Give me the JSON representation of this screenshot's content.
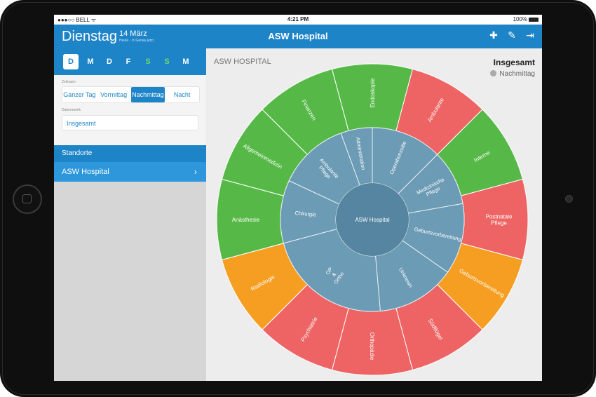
{
  "status": {
    "carrier": "●●●○○ BELL ᯤ",
    "time": "4:21 PM",
    "battery": "100%"
  },
  "header": {
    "day": "Dienstag",
    "date": "14 März",
    "date_sub": "Heute · ⟳ Genau jetzt",
    "title": "ASW Hospital"
  },
  "icons": {
    "one": "cross-hands-icon",
    "two": "edit-icon",
    "three": "logout-icon"
  },
  "sidebar": {
    "weekdays": [
      "D",
      "M",
      "D",
      "F",
      "S",
      "S",
      "M"
    ],
    "range_label": "Zeitraum",
    "range_options": [
      "Ganzer Tag",
      "Vormittag",
      "Nachmittag",
      "Nacht"
    ],
    "metric_label": "Datenmetrik",
    "metric_value": "Insgesamt",
    "locations_header": "Standorte",
    "location": "ASW Hospital"
  },
  "main": {
    "title": "ASW HOSPITAL",
    "summary": "Insgesamt",
    "period": "Nachmittag"
  },
  "colors": {
    "blue": "#1e84c8",
    "green": "#56b947",
    "red": "#ee6464",
    "orange": "#f59e22",
    "inner": "#6c9bb5",
    "center": "#5585a0"
  },
  "chart_data": {
    "type": "sunburst",
    "center": "ASW Hospital",
    "inner": [
      {
        "label": "Chirurgie"
      },
      {
        "label": "Ambulante Pflege"
      },
      {
        "label": "Administration"
      },
      {
        "label": "Operationssäle"
      },
      {
        "label": "Medizinische Pflege"
      },
      {
        "label": "Geburtsvorbereitung"
      },
      {
        "label": "Unknown"
      },
      {
        "label": "OP & Ortho"
      }
    ],
    "outer": [
      {
        "label": "Anästhesie",
        "parent": "Chirurgie",
        "color": "green"
      },
      {
        "label": "Allgemeinmedizin",
        "parent": "Ambulante Pflege",
        "color": "green"
      },
      {
        "label": "Finanzen",
        "parent": "Administration",
        "color": "green"
      },
      {
        "label": "Endoskopie",
        "parent": "Operationssäle",
        "color": "green"
      },
      {
        "label": "Ambulante",
        "parent": "Medizinische Pflege",
        "color": "red"
      },
      {
        "label": "Interne",
        "parent": "Medizinische Pflege",
        "color": "green"
      },
      {
        "label": "Postnatale Pflege",
        "parent": "Geburtsvorbereitung",
        "color": "red"
      },
      {
        "label": "Geburtsvorbereitung",
        "parent": "Geburtsvorbereitung",
        "color": "orange"
      },
      {
        "label": "Südflügel",
        "parent": "Unknown",
        "color": "red"
      },
      {
        "label": "Orthopädie",
        "parent": "OP & Ortho",
        "color": "red"
      },
      {
        "label": "Psychiatrie",
        "parent": "OP & Ortho",
        "color": "red"
      },
      {
        "label": "Radiologie",
        "parent": "Chirurgie",
        "color": "orange"
      }
    ]
  }
}
